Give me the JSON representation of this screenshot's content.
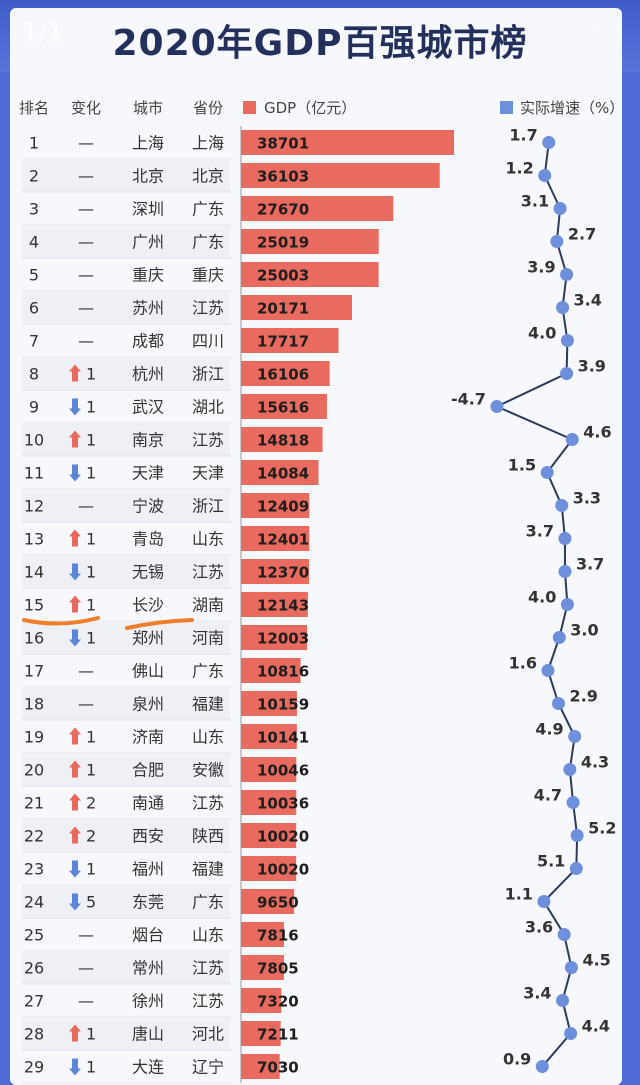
{
  "ui": {
    "pager": "1/1",
    "more": "···",
    "title": "2020年GDP百强城市榜"
  },
  "colors": {
    "bar": "#e96a5e",
    "rate_point": "#6e8fdc",
    "rate_line": "#2c3b5a",
    "arrow_up": "#e86a5c",
    "arrow_down": "#5b86d8",
    "annotation": "#ef7d2b"
  },
  "chart_data": {
    "type": "table",
    "columns": [
      "排名",
      "变化",
      "城市",
      "省份"
    ],
    "bar_legend": "GDP（亿元）",
    "line_legend": "实际增速（%）",
    "rows": [
      {
        "rank": "1",
        "change": "—",
        "dir": "none",
        "city": "上海",
        "province": "上海",
        "gdp": 38701,
        "growth": "1.7"
      },
      {
        "rank": "2",
        "change": "—",
        "dir": "none",
        "city": "北京",
        "province": "北京",
        "gdp": 36103,
        "growth": "1.2"
      },
      {
        "rank": "3",
        "change": "—",
        "dir": "none",
        "city": "深圳",
        "province": "广东",
        "gdp": 27670,
        "growth": "3.1"
      },
      {
        "rank": "4",
        "change": "—",
        "dir": "none",
        "city": "广州",
        "province": "广东",
        "gdp": 25019,
        "growth": "2.7"
      },
      {
        "rank": "5",
        "change": "—",
        "dir": "none",
        "city": "重庆",
        "province": "重庆",
        "gdp": 25003,
        "growth": "3.9"
      },
      {
        "rank": "6",
        "change": "—",
        "dir": "none",
        "city": "苏州",
        "province": "江苏",
        "gdp": 20171,
        "growth": "3.4"
      },
      {
        "rank": "7",
        "change": "—",
        "dir": "none",
        "city": "成都",
        "province": "四川",
        "gdp": 17717,
        "growth": "4.0"
      },
      {
        "rank": "8",
        "change": "1",
        "dir": "up",
        "city": "杭州",
        "province": "浙江",
        "gdp": 16106,
        "growth": "3.9"
      },
      {
        "rank": "9",
        "change": "1",
        "dir": "down",
        "city": "武汉",
        "province": "湖北",
        "gdp": 15616,
        "growth": "-4.7"
      },
      {
        "rank": "10",
        "change": "1",
        "dir": "up",
        "city": "南京",
        "province": "江苏",
        "gdp": 14818,
        "growth": "4.6"
      },
      {
        "rank": "11",
        "change": "1",
        "dir": "down",
        "city": "天津",
        "province": "天津",
        "gdp": 14084,
        "growth": "1.5"
      },
      {
        "rank": "12",
        "change": "—",
        "dir": "none",
        "city": "宁波",
        "province": "浙江",
        "gdp": 12409,
        "growth": "3.3"
      },
      {
        "rank": "13",
        "change": "1",
        "dir": "up",
        "city": "青岛",
        "province": "山东",
        "gdp": 12401,
        "growth": "3.7"
      },
      {
        "rank": "14",
        "change": "1",
        "dir": "down",
        "city": "无锡",
        "province": "江苏",
        "gdp": 12370,
        "growth": "3.7"
      },
      {
        "rank": "15",
        "change": "1",
        "dir": "up",
        "city": "长沙",
        "province": "湖南",
        "gdp": 12143,
        "growth": "4.0"
      },
      {
        "rank": "16",
        "change": "1",
        "dir": "down",
        "city": "郑州",
        "province": "河南",
        "gdp": 12003,
        "growth": "3.0"
      },
      {
        "rank": "17",
        "change": "—",
        "dir": "none",
        "city": "佛山",
        "province": "广东",
        "gdp": 10816,
        "growth": "1.6"
      },
      {
        "rank": "18",
        "change": "—",
        "dir": "none",
        "city": "泉州",
        "province": "福建",
        "gdp": 10159,
        "growth": "2.9"
      },
      {
        "rank": "19",
        "change": "1",
        "dir": "up",
        "city": "济南",
        "province": "山东",
        "gdp": 10141,
        "growth": "4.9"
      },
      {
        "rank": "20",
        "change": "1",
        "dir": "up",
        "city": "合肥",
        "province": "安徽",
        "gdp": 10046,
        "growth": "4.3"
      },
      {
        "rank": "21",
        "change": "2",
        "dir": "up",
        "city": "南通",
        "province": "江苏",
        "gdp": 10036,
        "growth": "4.7"
      },
      {
        "rank": "22",
        "change": "2",
        "dir": "up",
        "city": "西安",
        "province": "陕西",
        "gdp": 10020,
        "growth": "5.2"
      },
      {
        "rank": "23",
        "change": "1",
        "dir": "down",
        "city": "福州",
        "province": "福建",
        "gdp": 10020,
        "growth": "5.1"
      },
      {
        "rank": "24",
        "change": "5",
        "dir": "down",
        "city": "东莞",
        "province": "广东",
        "gdp": 9650,
        "growth": "1.1"
      },
      {
        "rank": "25",
        "change": "—",
        "dir": "none",
        "city": "烟台",
        "province": "山东",
        "gdp": 7816,
        "growth": "3.6"
      },
      {
        "rank": "26",
        "change": "—",
        "dir": "none",
        "city": "常州",
        "province": "江苏",
        "gdp": 7805,
        "growth": "4.5"
      },
      {
        "rank": "27",
        "change": "—",
        "dir": "none",
        "city": "徐州",
        "province": "江苏",
        "gdp": 7320,
        "growth": "3.4"
      },
      {
        "rank": "28",
        "change": "1",
        "dir": "up",
        "city": "唐山",
        "province": "河北",
        "gdp": 7211,
        "growth": "4.4"
      },
      {
        "rank": "29",
        "change": "1",
        "dir": "down",
        "city": "大连",
        "province": "辽宁",
        "gdp": 7030,
        "growth": "0.9"
      }
    ]
  }
}
